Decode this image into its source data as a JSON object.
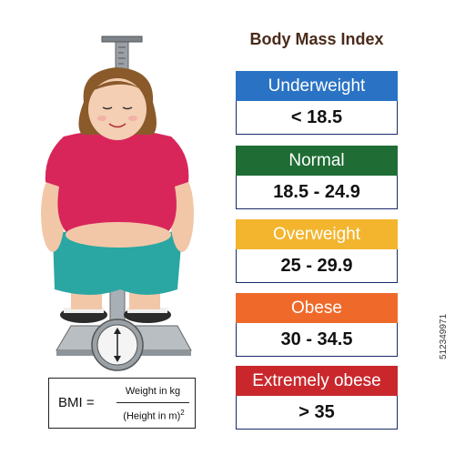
{
  "title": "Body Mass Index",
  "categories": [
    {
      "label": "Underweight",
      "range": "< 18.5",
      "color": "#2a73c4"
    },
    {
      "label": "Normal",
      "range": "18.5 - 24.9",
      "color": "#1f6d35"
    },
    {
      "label": "Overweight",
      "range": "25 - 29.9",
      "color": "#f3b52e"
    },
    {
      "label": "Obese",
      "range": "30 - 34.5",
      "color": "#ef6a2a"
    },
    {
      "label": "Extremely obese",
      "range": "> 35",
      "color": "#c9272c"
    }
  ],
  "formula": {
    "lhs": "BMI =",
    "numerator": "Weight in kg",
    "denominator": "(Height in m)",
    "exponent": "2"
  },
  "image_id": "512349971",
  "illustration": {
    "subject": "overweight-woman-on-scale-icon",
    "shirt_color": "#d8265a",
    "shorts_color": "#2aa7a2",
    "hair_color": "#8a5a2b"
  }
}
